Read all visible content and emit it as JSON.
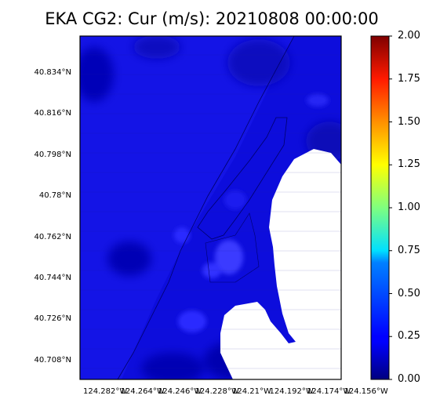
{
  "title": "EKA CG2: Cur (m/s): 20210808 00:00:00",
  "map": {
    "lat_ticks": [
      "40.834°N",
      "40.816°N",
      "40.798°N",
      "40.78°N",
      "40.762°N",
      "40.744°N",
      "40.726°N",
      "40.708°N"
    ],
    "lon_ticks": [
      "124.282°W",
      "124.264°W",
      "124.246°W",
      "124.228°W",
      "124.21°W",
      "124.192°W",
      "124.174°W",
      "124.156°W"
    ],
    "land_color": "#ffffff",
    "water_color": "#0d0dd8"
  },
  "colorbar": {
    "min": 0.0,
    "max": 2.0,
    "ticks": [
      "0.00",
      "0.25",
      "0.50",
      "0.75",
      "1.00",
      "1.25",
      "1.50",
      "1.75",
      "2.00"
    ],
    "colormap": "jet"
  }
}
